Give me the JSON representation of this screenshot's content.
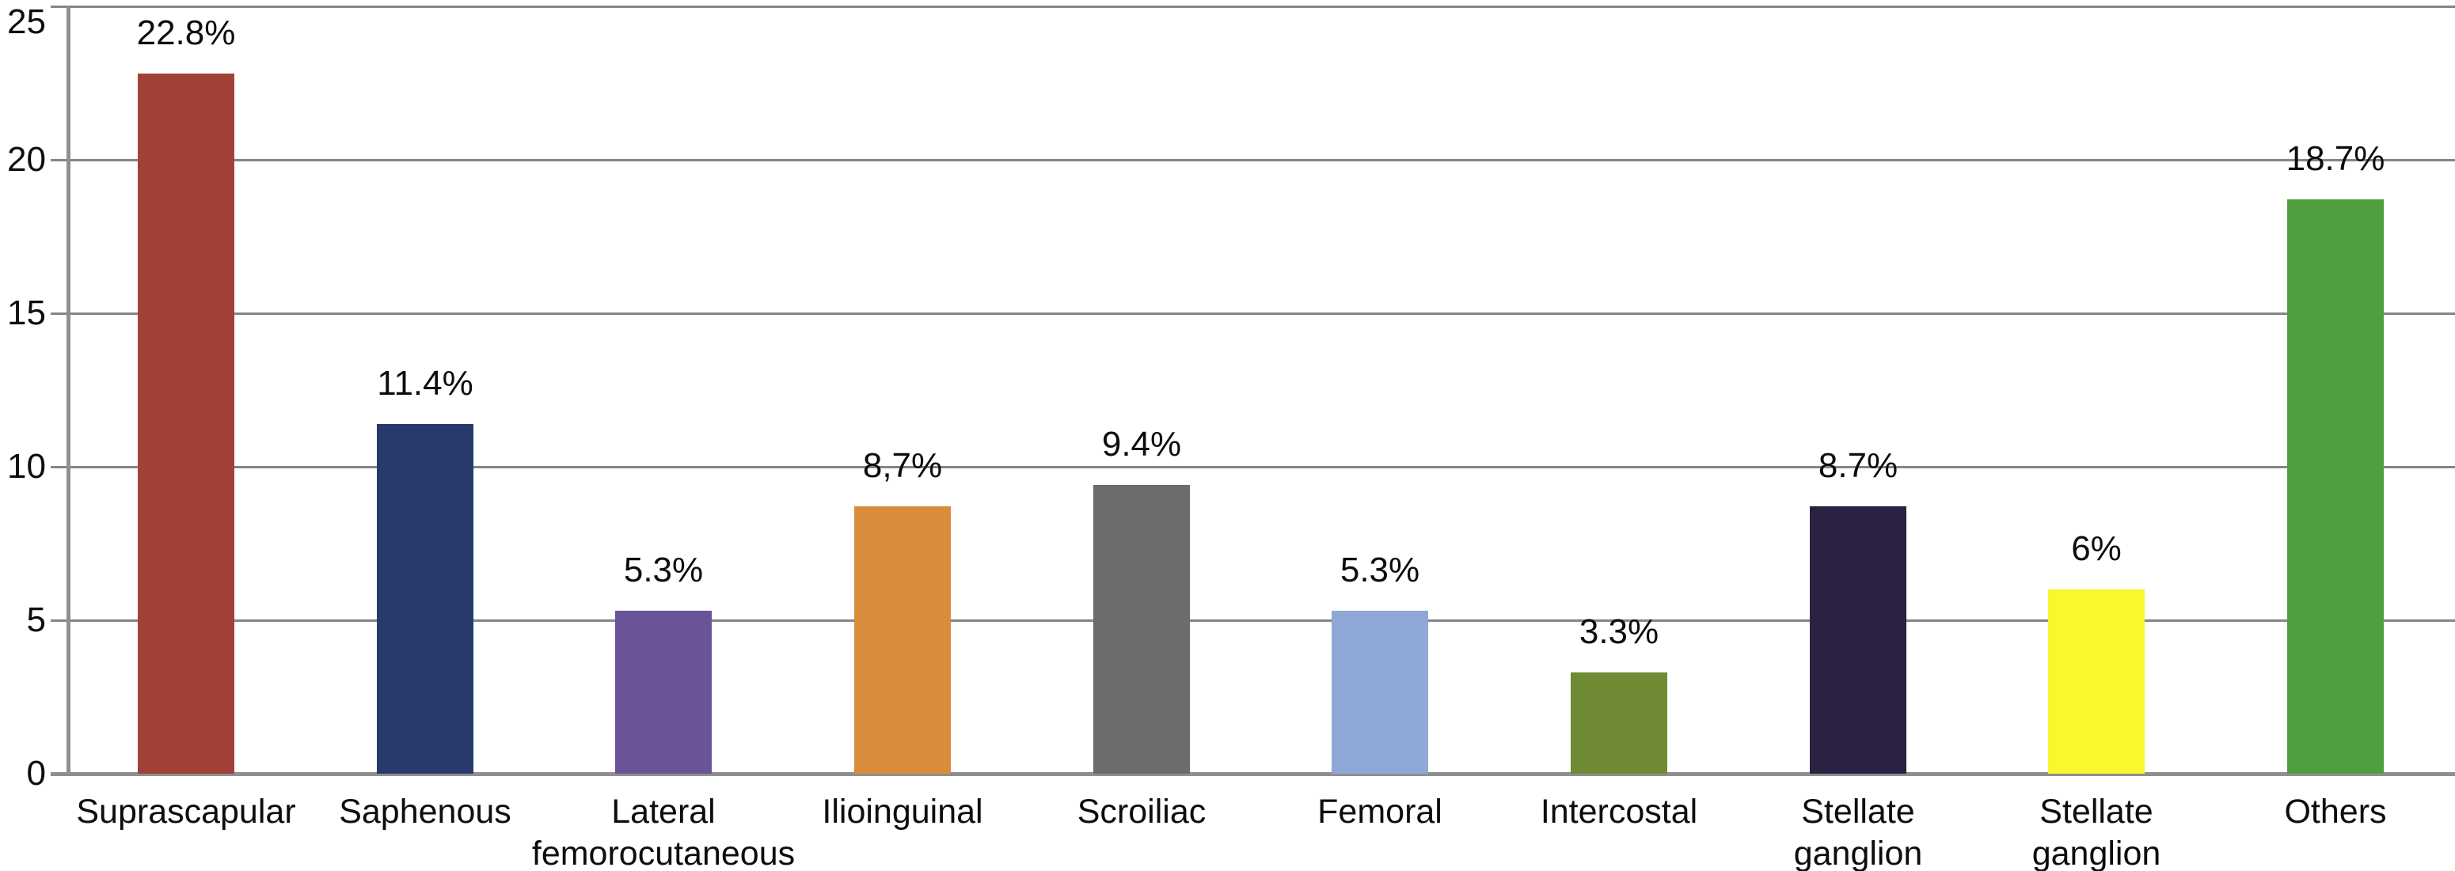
{
  "figure": {
    "background": "#ffffff",
    "title": ""
  },
  "chart_data": {
    "type": "bar",
    "title": "",
    "xlabel": "",
    "ylabel": "",
    "categories": [
      "Suprascapular",
      "Saphenous",
      "Lateral\nfemorocutaneous",
      "Ilioinguinal",
      "Scroiliac",
      "Femoral",
      "Intercostal",
      "Stellate\nganglion",
      "Stellate\nganglion",
      "Others"
    ],
    "values": [
      22.8,
      11.4,
      5.3,
      8.7,
      9.4,
      5.3,
      3.3,
      8.7,
      6,
      18.7
    ],
    "value_labels": [
      "22.8%",
      "11.4%",
      "5.3%",
      "8,7%",
      "9.4%",
      "5.3%",
      "3.3%",
      "8.7%",
      "6%",
      "18.7%"
    ],
    "bar_colors": [
      "#a04238",
      "#273a6b",
      "#6a5396",
      "#d98c3b",
      "#6c6c6c",
      "#8fa8d8",
      "#6f8b33",
      "#2b2143",
      "#f9f72e",
      "#4f9f41"
    ],
    "yticks": [
      0,
      5,
      10,
      15,
      20,
      25
    ],
    "ylim": [
      0,
      25
    ],
    "grid": true,
    "gridline_color": "#858585",
    "axis_color": "#8f8f8f",
    "text_color": "#0d0d0d",
    "legend_position": "none"
  }
}
